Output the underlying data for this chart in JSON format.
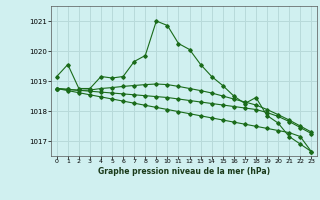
{
  "xlabel": "Graphe pression niveau de la mer (hPa)",
  "background_color": "#d0f0f0",
  "grid_color": "#b8dada",
  "line_color": "#1a6b1a",
  "ylim": [
    1016.5,
    1021.5
  ],
  "xlim": [
    -0.5,
    23.5
  ],
  "yticks": [
    1017,
    1018,
    1019,
    1020,
    1021
  ],
  "xticks": [
    0,
    1,
    2,
    3,
    4,
    5,
    6,
    7,
    8,
    9,
    10,
    11,
    12,
    13,
    14,
    15,
    16,
    17,
    18,
    19,
    20,
    21,
    22,
    23
  ],
  "lines": [
    [
      1019.15,
      1019.55,
      1018.75,
      1018.75,
      1019.15,
      1019.1,
      1019.15,
      1019.65,
      1019.85,
      1021.0,
      1020.85,
      1020.25,
      1020.05,
      1019.55,
      1019.15,
      1018.85,
      1018.5,
      1018.25,
      1018.45,
      1017.85,
      1017.6,
      1017.15,
      1016.9,
      1016.65
    ],
    [
      1018.75,
      1018.72,
      1018.69,
      1018.7,
      1018.75,
      1018.78,
      1018.82,
      1018.85,
      1018.88,
      1018.9,
      1018.88,
      1018.82,
      1018.75,
      1018.68,
      1018.6,
      1018.5,
      1018.4,
      1018.3,
      1018.2,
      1018.05,
      1017.88,
      1017.7,
      1017.5,
      1017.3
    ],
    [
      1018.75,
      1018.72,
      1018.69,
      1018.66,
      1018.63,
      1018.6,
      1018.57,
      1018.54,
      1018.51,
      1018.48,
      1018.45,
      1018.4,
      1018.35,
      1018.3,
      1018.25,
      1018.2,
      1018.15,
      1018.1,
      1018.05,
      1017.95,
      1017.82,
      1017.65,
      1017.45,
      1017.25
    ],
    [
      1018.75,
      1018.68,
      1018.61,
      1018.54,
      1018.47,
      1018.4,
      1018.33,
      1018.26,
      1018.19,
      1018.12,
      1018.05,
      1017.98,
      1017.91,
      1017.84,
      1017.77,
      1017.7,
      1017.63,
      1017.56,
      1017.49,
      1017.42,
      1017.35,
      1017.28,
      1017.15,
      1016.65
    ]
  ]
}
